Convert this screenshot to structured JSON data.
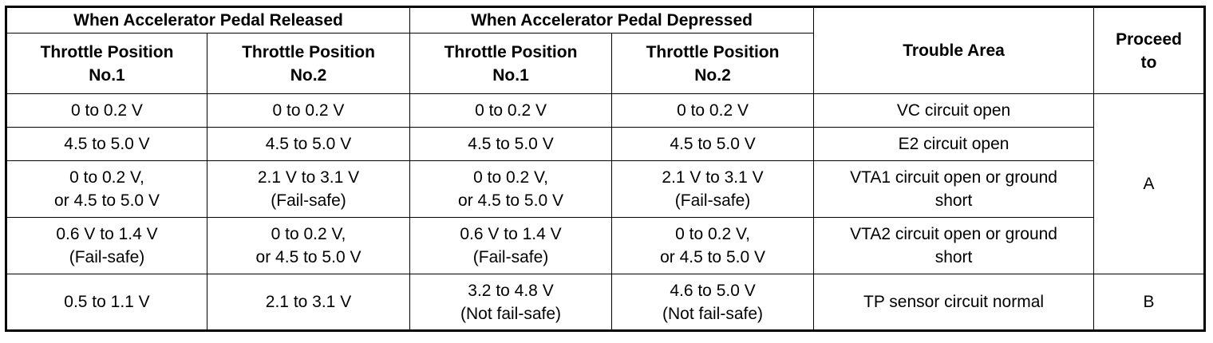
{
  "table": {
    "group_headers": {
      "released": "When Accelerator Pedal Released",
      "depressed": "When Accelerator Pedal Depressed"
    },
    "trouble_area_header": "Trouble Area",
    "proceed_header": [
      "Proceed",
      "to"
    ],
    "sub_headers": {
      "released_tp1": [
        "Throttle Position",
        "No.1"
      ],
      "released_tp2": [
        "Throttle Position",
        "No.2"
      ],
      "depressed_tp1": [
        "Throttle Position",
        "No.1"
      ],
      "depressed_tp2": [
        "Throttle Position",
        "No.2"
      ]
    },
    "rows": [
      {
        "released_tp1": [
          "0 to 0.2 V"
        ],
        "released_tp2": [
          "0 to 0.2 V"
        ],
        "depressed_tp1": [
          "0 to 0.2 V"
        ],
        "depressed_tp2": [
          "0 to 0.2 V"
        ],
        "trouble_area": [
          "VC circuit open"
        ]
      },
      {
        "released_tp1": [
          "4.5 to 5.0 V"
        ],
        "released_tp2": [
          "4.5 to 5.0 V"
        ],
        "depressed_tp1": [
          "4.5 to 5.0 V"
        ],
        "depressed_tp2": [
          "4.5 to 5.0 V"
        ],
        "trouble_area": [
          "E2 circuit open"
        ]
      },
      {
        "released_tp1": [
          "0 to 0.2 V,",
          "or 4.5 to 5.0 V"
        ],
        "released_tp2": [
          "2.1 V to 3.1 V",
          "(Fail-safe)"
        ],
        "depressed_tp1": [
          "0 to 0.2 V,",
          "or 4.5 to 5.0 V"
        ],
        "depressed_tp2": [
          "2.1 V to 3.1 V",
          "(Fail-safe)"
        ],
        "trouble_area": [
          "VTA1 circuit open or ground",
          "short"
        ]
      },
      {
        "released_tp1": [
          "0.6 V to 1.4 V",
          "(Fail-safe)"
        ],
        "released_tp2": [
          "0 to 0.2 V,",
          "or 4.5 to 5.0 V"
        ],
        "depressed_tp1": [
          "0.6 V to 1.4 V",
          "(Fail-safe)"
        ],
        "depressed_tp2": [
          "0 to 0.2 V,",
          "or 4.5 to 5.0 V"
        ],
        "trouble_area": [
          "VTA2 circuit open or ground",
          "short"
        ]
      },
      {
        "released_tp1": [
          "0.5 to 1.1 V"
        ],
        "released_tp2": [
          "2.1 to 3.1 V"
        ],
        "depressed_tp1": [
          "3.2 to 4.8 V",
          "(Not fail-safe)"
        ],
        "depressed_tp2": [
          "4.6 to 5.0 V",
          "(Not fail-safe)"
        ],
        "trouble_area": [
          "TP sensor circuit normal"
        ]
      }
    ],
    "proceed_values": [
      "A",
      "B"
    ]
  }
}
